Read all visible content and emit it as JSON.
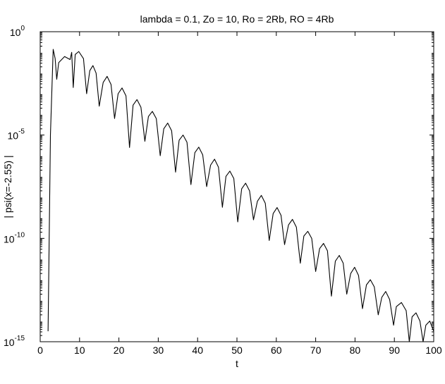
{
  "chart_data": {
    "type": "line",
    "title": "lambda = 0.1, Zo = 10, Ro = 2Rb, RO = 4Rb",
    "xlabel": "t",
    "ylabel": "| psi(x=-2.55) |",
    "log_y": true,
    "color": "#000000",
    "xlim": [
      0,
      100
    ],
    "xticks": [
      0,
      10,
      20,
      30,
      40,
      50,
      60,
      70,
      80,
      90,
      100
    ],
    "ylim": [
      1e-15,
      1
    ],
    "yticks": [
      {
        "value": 1e-15,
        "label": "10",
        "exponent": "-15"
      },
      {
        "value": 1e-10,
        "label": "10",
        "exponent": "-10"
      },
      {
        "value": 1e-05,
        "label": "10",
        "exponent": "-5"
      },
      {
        "value": 1,
        "label": "10",
        "exponent": "0"
      }
    ],
    "x": [
      2,
      2.6,
      3.3,
      3.8,
      4.2,
      4.7,
      6.2,
      7.6,
      8.0,
      8.4,
      8.9,
      9.8,
      11.0,
      11.8,
      12.6,
      13.4,
      14.2,
      15.0,
      16,
      17,
      18,
      18.9,
      19.8,
      20.8,
      21.8,
      22.7,
      23.6,
      24.6,
      25.6,
      26.6,
      27.5,
      28.5,
      29.5,
      30.5,
      31.4,
      32.4,
      33.4,
      34.4,
      35.3,
      36.3,
      37.3,
      38.3,
      39.3,
      40.3,
      41.3,
      42.3,
      43.3,
      44.3,
      45.3,
      46.3,
      47.2,
      48.2,
      49.2,
      50.2,
      51.2,
      52.2,
      53.2,
      54.2,
      55.2,
      56.2,
      57.2,
      58.2,
      59.2,
      60.2,
      61.2,
      62.1,
      63.1,
      64.1,
      65.1,
      66.1,
      67,
      68,
      69,
      70,
      71,
      72,
      73,
      74,
      75,
      76,
      77,
      77.9,
      78.9,
      79.9,
      80.9,
      81.9,
      82.9,
      83.9,
      84.9,
      85.9,
      86.8,
      87.8,
      88.8,
      89.8,
      90.5,
      91.8,
      93,
      93.8,
      94.5,
      95.5,
      96.5,
      97.3,
      98,
      99,
      100
    ],
    "values": [
      3.2e-15,
      1e-05,
      0.14,
      0.05,
      0.005,
      0.032,
      0.063,
      0.045,
      0.1,
      0.002,
      0.079,
      0.11,
      0.05,
      0.001,
      0.013,
      0.023,
      0.01,
      0.00025,
      0.0035,
      0.0069,
      0.0028,
      6.3e-05,
      0.001,
      0.0019,
      0.00079,
      2.5e-06,
      0.00028,
      0.00052,
      0.00022,
      5e-06,
      7.9e-05,
      0.00014,
      6.3e-05,
      1e-06,
      2e-05,
      3.8e-05,
      1.6e-05,
      1.6e-07,
      5.6e-06,
      1e-05,
      4.5e-06,
      4e-08,
      1.4e-06,
      2.6e-06,
      1.1e-06,
      3.2e-08,
      3.5e-07,
      6.8e-07,
      2.8e-07,
      3.2e-09,
      1e-07,
      1.8e-07,
      7.9e-08,
      6.3e-10,
      2.5e-08,
      4.7e-08,
      2e-08,
      7.9e-10,
      6.3e-09,
      1.2e-08,
      5e-09,
      7.9e-11,
      1.6e-09,
      3.1e-09,
      1.3e-09,
      5e-11,
      4.5e-10,
      8.3e-10,
      3.5e-10,
      6.3e-12,
      1.3e-10,
      2.2e-10,
      1e-10,
      2.5e-12,
      3.2e-11,
      5.7e-11,
      2.5e-11,
      1.6e-13,
      7.9e-12,
      1.5e-11,
      6.3e-12,
      2e-13,
      2e-12,
      4e-12,
      1.6e-12,
      4e-14,
      5.6e-13,
      1e-12,
      4.5e-13,
      2e-14,
      1.4e-13,
      2.7e-13,
      1.1e-13,
      6.3e-15,
      5e-14,
      7.9e-14,
      3.2e-14,
      1e-15,
      1.6e-14,
      2.5e-14,
      1e-14,
      1e-15,
      6.3e-15,
      1e-14,
      3.2e-15
    ]
  }
}
